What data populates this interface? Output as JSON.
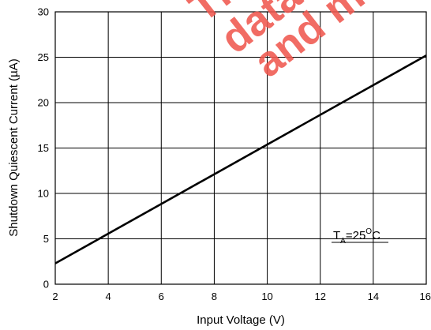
{
  "chart_data": {
    "type": "line",
    "title": "",
    "xlabel": "Input Voltage (V)",
    "ylabel": "Shutdown Quiescent Current (µA)",
    "xlim": [
      2,
      16
    ],
    "ylim": [
      0,
      30
    ],
    "x_ticks": [
      2,
      4,
      6,
      8,
      10,
      12,
      14,
      16
    ],
    "y_ticks": [
      0,
      5,
      10,
      15,
      20,
      25,
      30
    ],
    "grid": true,
    "series": [
      {
        "x": [
          2,
          16
        ],
        "y": [
          2.3,
          25.2
        ],
        "color": "#000000"
      }
    ],
    "annotation": {
      "main": "T",
      "sub": "A",
      "rest": "=25",
      "sup": "O",
      "unit": "C"
    },
    "watermark": {
      "lines": [
        "Th",
        "data",
        "and m"
      ],
      "color": "#f0584f"
    }
  }
}
